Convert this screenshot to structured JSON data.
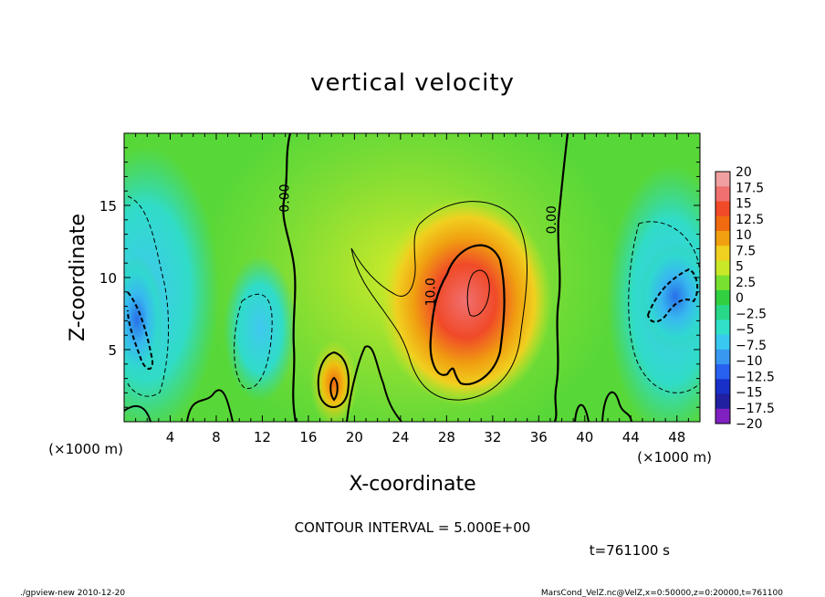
{
  "chart_data": {
    "type": "heatmap",
    "title": "vertical velocity",
    "xlabel": "X-coordinate",
    "ylabel": "Z-coordinate",
    "x_unit_left": "(×1000 m)",
    "x_unit_right": "(×1000 m)",
    "xlim": [
      0,
      50
    ],
    "ylim": [
      0,
      20
    ],
    "x_ticks": [
      "4",
      "8",
      "12",
      "16",
      "20",
      "24",
      "28",
      "32",
      "36",
      "40",
      "44",
      "48"
    ],
    "y_ticks": [
      "5",
      "10",
      "15"
    ],
    "colorbar_levels": [
      "20",
      "17.5",
      "15",
      "12.5",
      "10",
      "7.5",
      "5",
      "2.5",
      "0",
      "-2.5",
      "-5",
      "-7.5",
      "-10",
      "-12.5",
      "-15",
      "-17.5",
      "-20"
    ],
    "colorbar_colors": [
      "#f0a0a0",
      "#f07070",
      "#f04a28",
      "#f06a10",
      "#f0a010",
      "#f0d020",
      "#c8e828",
      "#78e030",
      "#30d040",
      "#28d888",
      "#30e0c8",
      "#38c8f0",
      "#3898f0",
      "#2860f0",
      "#1830c8",
      "#2020a0",
      "#8020c0"
    ],
    "contour_labels": [
      {
        "text": "0.00",
        "x": 14.3,
        "z": 15.5
      },
      {
        "text": "0.00",
        "x": 37.5,
        "z": 14.0
      },
      {
        "text": "10.0",
        "x": 27.0,
        "z": 9.0
      }
    ],
    "features": [
      {
        "name": "updraft",
        "x": 30,
        "z": 9,
        "value": 17.5
      },
      {
        "name": "updraft",
        "x": 18,
        "z": 2.5,
        "value": 12.5
      },
      {
        "name": "downdraft",
        "x": 1,
        "z": 7,
        "value": -12.5
      },
      {
        "name": "downdraft",
        "x": 47,
        "z": 9,
        "value": -12.5
      }
    ],
    "contour_interval": "CONTOUR INTERVAL = 5.000E+00",
    "time": "t=761100 s"
  },
  "footer": {
    "left": "./gpview-new   2010-12-20",
    "right": "MarsCond_VelZ.nc@VelZ,x=0:50000,z=0:20000,t=761100"
  }
}
